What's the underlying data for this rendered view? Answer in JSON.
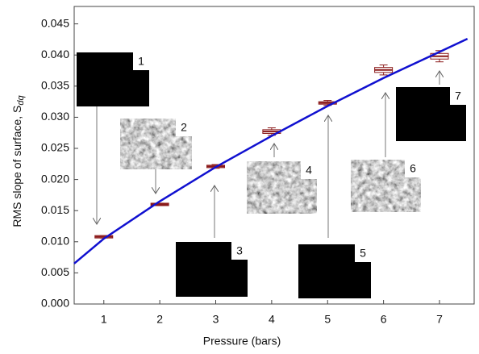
{
  "chart_data": {
    "type": "box",
    "xlabel": "Pressure (bars)",
    "ylabel": "RMS slope of surface, S",
    "ylabel_sub": "dq",
    "xlim": [
      0.47,
      7.62
    ],
    "ylim": [
      0,
      0.0478
    ],
    "xticks": [
      1,
      2,
      3,
      4,
      5,
      6,
      7
    ],
    "yticks": [
      {
        "value": 0,
        "label": "0.000"
      },
      {
        "value": 0.005,
        "label": "0.005"
      },
      {
        "value": 0.01,
        "label": "0.010"
      },
      {
        "value": 0.015,
        "label": "0.015"
      },
      {
        "value": 0.02,
        "label": "0.020"
      },
      {
        "value": 0.025,
        "label": "0.025"
      },
      {
        "value": 0.03,
        "label": "0.030"
      },
      {
        "value": 0.035,
        "label": "0.035"
      },
      {
        "value": 0.04,
        "label": "0.040"
      },
      {
        "value": 0.045,
        "label": "0.045"
      }
    ],
    "series": [
      {
        "color": "#8b1a1a",
        "x": [
          1,
          2,
          3,
          4,
          5,
          6,
          7
        ],
        "values": [
          0.0108,
          0.016,
          0.0221,
          0.0277,
          0.0323,
          0.0376,
          0.0398
        ],
        "errors": [
          0.0002,
          0.0002,
          0.0003,
          0.0006,
          0.0004,
          0.0008,
          0.0009
        ]
      },
      {
        "color": "#1010d0",
        "x": [
          0.47,
          1,
          2,
          3,
          4,
          5,
          6,
          7,
          7.5
        ],
        "values": [
          0.0065,
          0.0105,
          0.0165,
          0.022,
          0.027,
          0.0318,
          0.0363,
          0.0405,
          0.0426
        ]
      }
    ],
    "annotations": [
      "1",
      "2",
      "3",
      "4",
      "5",
      "6",
      "7"
    ]
  }
}
